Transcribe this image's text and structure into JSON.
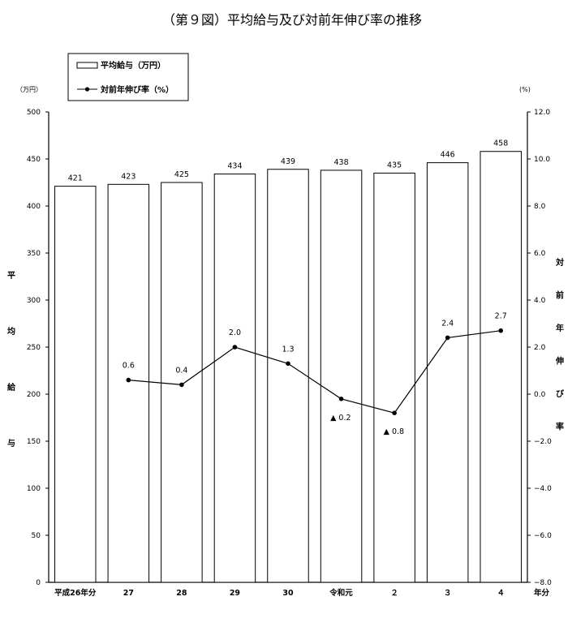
{
  "chart_data": {
    "type": "bar",
    "title": "（第９図）平均給与及び対前年伸び率の推移",
    "categories": [
      "平成26年分",
      "27",
      "28",
      "29",
      "30",
      "令和元",
      "２",
      "３",
      "４"
    ],
    "x_suffix": "年分",
    "series": [
      {
        "name": "平均給与（万円）",
        "type": "bar",
        "axis": "left",
        "values": [
          421,
          423,
          425,
          434,
          439,
          438,
          435,
          446,
          458
        ],
        "labels": [
          "421",
          "423",
          "425",
          "434",
          "439",
          "438",
          "435",
          "446",
          "458"
        ]
      },
      {
        "name": "対前年伸び率（%）",
        "type": "line",
        "axis": "right",
        "values": [
          null,
          0.6,
          0.4,
          2.0,
          1.3,
          -0.2,
          -0.8,
          2.4,
          2.7
        ],
        "labels": [
          null,
          "0.6",
          "0.4",
          "2.0",
          "1.3",
          "▲ 0.2",
          "▲ 0.8",
          "2.4",
          "2.7"
        ]
      }
    ],
    "y_left": {
      "unit": "（万円）",
      "label": "平均給与",
      "range": [
        0,
        500
      ],
      "ticks": [
        "0",
        "50",
        "100",
        "150",
        "200",
        "250",
        "300",
        "350",
        "400",
        "450",
        "500"
      ]
    },
    "y_right": {
      "unit": "(%)",
      "label": "対前年伸び率",
      "range": [
        -8,
        12
      ],
      "ticks": [
        "−8.0",
        "−6.0",
        "−4.0",
        "−2.0",
        "0.0",
        "2.0",
        "4.0",
        "6.0",
        "8.0",
        "10.0",
        "12.0"
      ]
    },
    "legend_position": "top-left",
    "grid": false
  }
}
